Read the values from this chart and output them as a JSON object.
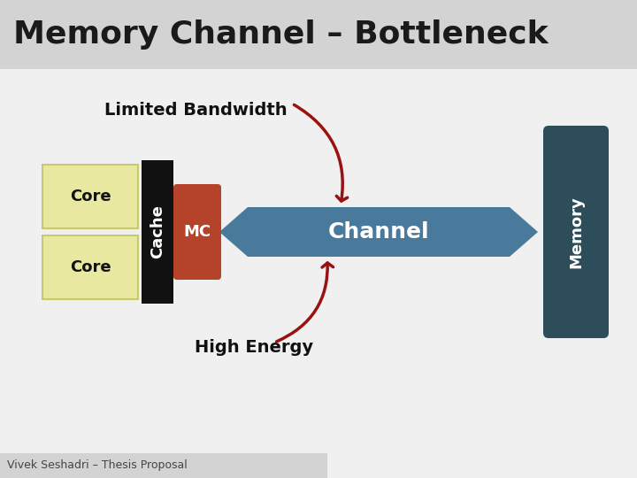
{
  "title": "Memory Channel – Bottleneck",
  "title_bg": "#d3d3d3",
  "slide_bg": "#f0f0f0",
  "content_bg": "#ffffff",
  "footer_text": "Vivek Seshadri – Thesis Proposal",
  "footer_bg": "#d3d3d3",
  "core_color": "#e8e8a0",
  "core_text_color": "#111111",
  "cache_color": "#111111",
  "cache_text_color": "#ffffff",
  "mc_color": "#b5432a",
  "mc_text_color": "#ffffff",
  "channel_color": "#4a7a9b",
  "channel_text_color": "#ffffff",
  "memory_color": "#2d4d5a",
  "memory_text_color": "#ffffff",
  "arrow_color": "#991111",
  "label_bw": "Limited Bandwidth",
  "label_he": "High Energy",
  "title_fontsize": 26,
  "label_fontsize": 14,
  "core_fontsize": 13,
  "cache_fontsize": 13,
  "mc_fontsize": 13,
  "channel_fontsize": 18,
  "memory_fontsize": 13,
  "footer_fontsize": 9
}
